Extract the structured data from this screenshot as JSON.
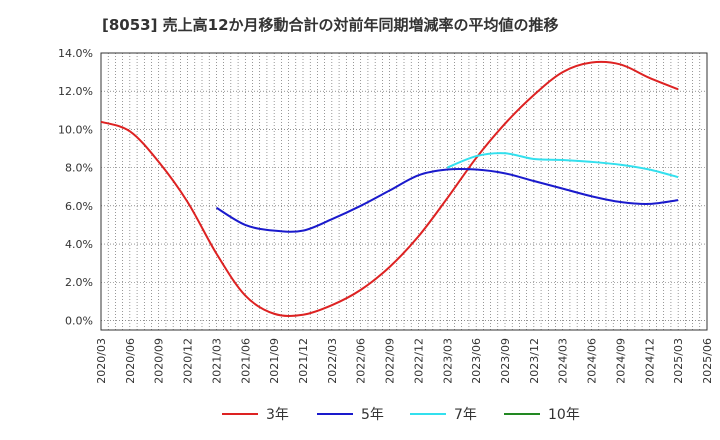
{
  "chart_data": {
    "type": "line",
    "title": "[8053]  売上高12か月移動合計の対前年同期増減率の平均値の推移",
    "xlabel": "",
    "ylabel": "",
    "ylim": [
      -0.5,
      14.0
    ],
    "yticks": [
      "14.0%",
      "12.0%",
      "10.0%",
      "8.0%",
      "6.0%",
      "4.0%",
      "2.0%",
      "0.0%"
    ],
    "ytick_values": [
      14,
      12,
      10,
      8,
      6,
      4,
      2,
      0
    ],
    "categories": [
      "2020/03",
      "2020/06",
      "2020/09",
      "2020/12",
      "2021/03",
      "2021/06",
      "2021/09",
      "2021/12",
      "2022/03",
      "2022/06",
      "2022/09",
      "2022/12",
      "2023/03",
      "2023/06",
      "2023/09",
      "2023/12",
      "2024/03",
      "2024/06",
      "2024/09",
      "2024/12",
      "2025/03",
      "2025/06"
    ],
    "grid": true,
    "legend_position": "bottom",
    "series": [
      {
        "name": "3年",
        "color": "#dd2222",
        "values": [
          10.4,
          9.9,
          8.3,
          6.2,
          3.5,
          1.3,
          0.35,
          0.3,
          0.8,
          1.6,
          2.8,
          4.4,
          6.4,
          8.5,
          10.3,
          11.8,
          13.0,
          13.5,
          13.4,
          12.7,
          12.1,
          null
        ]
      },
      {
        "name": "5年",
        "color": "#1a1acc",
        "values": [
          null,
          null,
          null,
          null,
          5.9,
          5.0,
          4.7,
          4.7,
          5.3,
          6.0,
          6.8,
          7.6,
          7.9,
          7.9,
          7.7,
          7.3,
          6.9,
          6.5,
          6.2,
          6.1,
          6.3,
          null
        ]
      },
      {
        "name": "7年",
        "color": "#33e0ee",
        "values": [
          null,
          null,
          null,
          null,
          null,
          null,
          null,
          null,
          null,
          null,
          null,
          null,
          8.0,
          8.6,
          8.75,
          8.45,
          8.4,
          8.3,
          8.15,
          7.9,
          7.5,
          null
        ]
      },
      {
        "name": "10年",
        "color": "#228822",
        "values": [
          null,
          null,
          null,
          null,
          null,
          null,
          null,
          null,
          null,
          null,
          null,
          null,
          null,
          null,
          null,
          null,
          null,
          null,
          null,
          null,
          null,
          null
        ]
      }
    ]
  }
}
